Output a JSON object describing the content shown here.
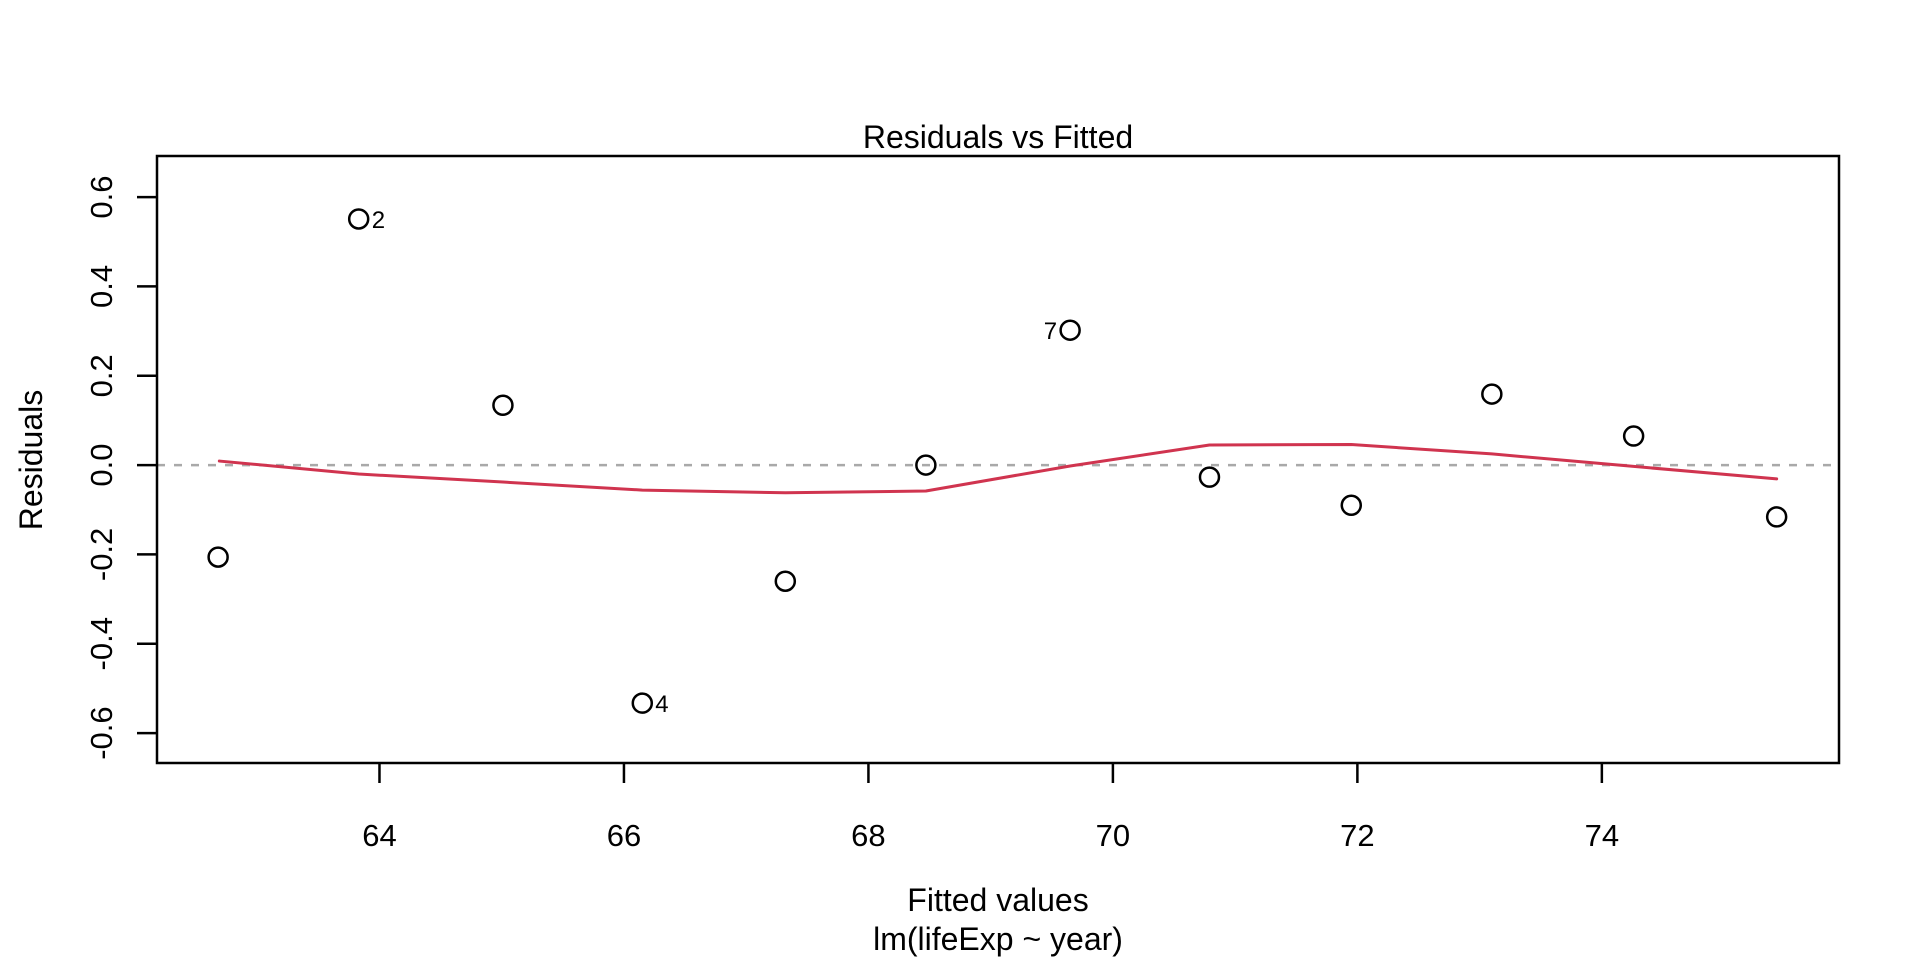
{
  "chart_data": {
    "type": "scatter",
    "title": "Residuals vs Fitted",
    "xlabel": "Fitted values",
    "xlabel_sub": "lm(lifeExp ~ year)",
    "ylabel": "Residuals",
    "xlim": [
      62.18,
      75.94
    ],
    "ylim": [
      -0.667,
      0.692
    ],
    "x_ticks": [
      "64",
      "66",
      "68",
      "70",
      "72",
      "74"
    ],
    "y_ticks": [
      "0.6",
      "0.4",
      "0.2",
      "0.0",
      "-0.2",
      "-0.4",
      "-0.6"
    ],
    "grid": false,
    "legend": null,
    "zero_line": {
      "y": 0,
      "style": "dotted"
    },
    "points": [
      {
        "fitted": 62.68,
        "residual": -0.206
      },
      {
        "fitted": 63.83,
        "residual": 0.551,
        "label": "2",
        "label_side": "right"
      },
      {
        "fitted": 65.01,
        "residual": 0.134
      },
      {
        "fitted": 66.15,
        "residual": -0.533,
        "label": "4",
        "label_side": "right"
      },
      {
        "fitted": 67.32,
        "residual": -0.26
      },
      {
        "fitted": 68.47,
        "residual": 0.0
      },
      {
        "fitted": 69.65,
        "residual": 0.302,
        "label": "7",
        "label_side": "left"
      },
      {
        "fitted": 70.79,
        "residual": -0.027
      },
      {
        "fitted": 71.95,
        "residual": -0.09
      },
      {
        "fitted": 73.1,
        "residual": 0.159
      },
      {
        "fitted": 74.26,
        "residual": 0.065
      },
      {
        "fitted": 75.43,
        "residual": -0.116
      }
    ],
    "smooth_line": {
      "name": "lowess-smooth",
      "vertices": [
        [
          62.69,
          0.009
        ],
        [
          63.83,
          -0.02
        ],
        [
          65.01,
          -0.038
        ],
        [
          66.15,
          -0.056
        ],
        [
          67.32,
          -0.062
        ],
        [
          68.47,
          -0.058
        ],
        [
          69.65,
          -0.002
        ],
        [
          70.79,
          0.045
        ],
        [
          71.95,
          0.046
        ],
        [
          73.1,
          0.025
        ],
        [
          74.26,
          -0.003
        ],
        [
          75.43,
          -0.031
        ]
      ]
    }
  },
  "colors": {
    "background": "#ffffff",
    "axis": "#000000",
    "text": "#000000",
    "smooth_line": "#d0344f",
    "zero_line": "#a9a9a9",
    "point_stroke": "#000000"
  }
}
